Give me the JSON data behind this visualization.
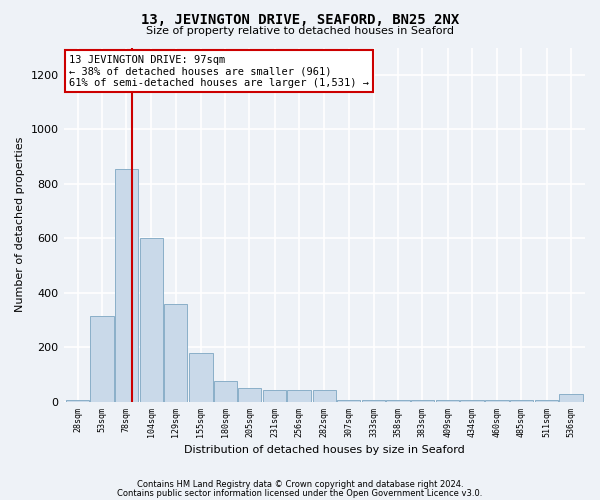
{
  "title": "13, JEVINGTON DRIVE, SEAFORD, BN25 2NX",
  "subtitle": "Size of property relative to detached houses in Seaford",
  "xlabel": "Distribution of detached houses by size in Seaford",
  "ylabel": "Number of detached properties",
  "footer_line1": "Contains HM Land Registry data © Crown copyright and database right 2024.",
  "footer_line2": "Contains public sector information licensed under the Open Government Licence v3.0.",
  "bar_color": "#c9d9e9",
  "bar_edge_color": "#8aafc8",
  "background_color": "#eef2f7",
  "annotation_box_color": "#ffffff",
  "annotation_border_color": "#cc0000",
  "vline_color": "#cc0000",
  "property_sqm": 97,
  "annotation_line1": "13 JEVINGTON DRIVE: 97sqm",
  "annotation_line2": "← 38% of detached houses are smaller (961)",
  "annotation_line3": "61% of semi-detached houses are larger (1,531) →",
  "bin_labels": [
    "28sqm",
    "53sqm",
    "78sqm",
    "104sqm",
    "129sqm",
    "155sqm",
    "180sqm",
    "205sqm",
    "231sqm",
    "256sqm",
    "282sqm",
    "307sqm",
    "333sqm",
    "358sqm",
    "383sqm",
    "409sqm",
    "434sqm",
    "460sqm",
    "485sqm",
    "511sqm",
    "536sqm"
  ],
  "bar_values": [
    5,
    315,
    855,
    600,
    360,
    180,
    75,
    50,
    45,
    45,
    45,
    5,
    5,
    5,
    5,
    5,
    5,
    5,
    5,
    5,
    30
  ],
  "bin_starts": [
    28,
    53,
    78,
    104,
    129,
    155,
    180,
    205,
    231,
    256,
    282,
    307,
    333,
    358,
    383,
    409,
    434,
    460,
    485,
    511,
    536
  ],
  "bin_width": 25,
  "ylim": [
    0,
    1300
  ],
  "yticks": [
    0,
    200,
    400,
    600,
    800,
    1000,
    1200
  ]
}
